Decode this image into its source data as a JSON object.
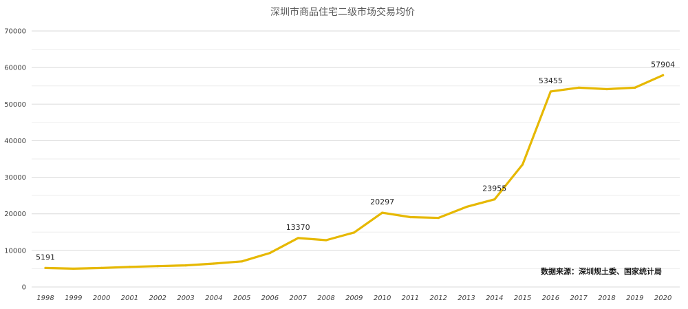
{
  "chart_data": {
    "type": "line",
    "title": "深圳市商品住宅二级市场交易均价",
    "xlabel": "",
    "ylabel": "",
    "ylim": [
      0,
      70000
    ],
    "yticks": [
      0,
      10000,
      20000,
      30000,
      40000,
      50000,
      60000,
      70000
    ],
    "grid": true,
    "categories": [
      "1998",
      "1999",
      "2000",
      "2001",
      "2002",
      "2003",
      "2004",
      "2005",
      "2006",
      "2007",
      "2008",
      "2009",
      "2010",
      "2011",
      "2012",
      "2013",
      "2014",
      "2015",
      "2016",
      "2017",
      "2018",
      "2019",
      "2020"
    ],
    "series": [
      {
        "color": "#E6B800",
        "values": [
          5191,
          5000,
          5200,
          5500,
          5700,
          5900,
          6400,
          7000,
          9300,
          13370,
          12800,
          14900,
          20297,
          19100,
          18900,
          21900,
          23955,
          33500,
          53455,
          54500,
          54100,
          54500,
          57904
        ]
      }
    ],
    "data_labels": [
      {
        "index": 0,
        "text": "5191"
      },
      {
        "index": 9,
        "text": "13370"
      },
      {
        "index": 12,
        "text": "20297"
      },
      {
        "index": 16,
        "text": "23955"
      },
      {
        "index": 18,
        "text": "53455"
      },
      {
        "index": 22,
        "text": "57904"
      }
    ],
    "annotation": "数据来源：深圳规土委、国家统计局"
  }
}
